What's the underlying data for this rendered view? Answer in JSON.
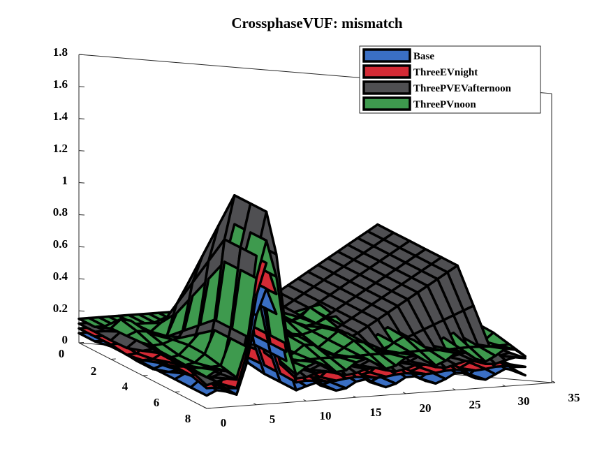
{
  "chart_data": {
    "type": "surface3d",
    "title": "CrossphaseVUF: mismatch",
    "xlabel": "",
    "ylabel": "",
    "zlabel": "",
    "x_ticks": [
      "0",
      "5",
      "10",
      "15",
      "20",
      "25",
      "30",
      "35"
    ],
    "y_ticks": [
      "0",
      "2",
      "4",
      "6",
      "8"
    ],
    "z_ticks": [
      "0",
      "0.2",
      "0.4",
      "0.6",
      "0.8",
      "1",
      "1.2",
      "1.4",
      "1.6",
      "1.8"
    ],
    "xlim": [
      0,
      35
    ],
    "ylim": [
      0,
      8
    ],
    "zlim": [
      0,
      1.8
    ],
    "legend_position": "top-right",
    "colors": {
      "Base": "#3a6fc4",
      "ThreeEVnight": "#d42a35",
      "ThreePVEVafternoon": "#4f4f52",
      "ThreePVnoon": "#3e9a4e"
    },
    "series": [
      {
        "name": "Base",
        "peak_x": 6,
        "peak_value": 0.72
      },
      {
        "name": "ThreeEVnight",
        "peak_x": 6,
        "peak_value": 0.88
      },
      {
        "name": "ThreePVEVafternoon",
        "peak_x": 6,
        "peak_value": 1.2,
        "secondary_peak_x": 30,
        "secondary_peak_value": 0.6
      },
      {
        "name": "ThreePVnoon",
        "peak_x": 6,
        "peak_value": 1.02
      }
    ]
  }
}
